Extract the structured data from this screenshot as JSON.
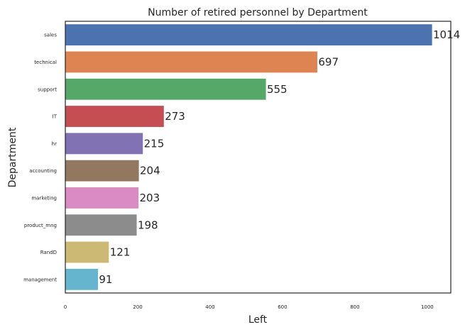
{
  "chart_data": {
    "type": "bar",
    "orientation": "horizontal",
    "title": "Number of retired personnel by Department",
    "xlabel": "Left",
    "ylabel": "Department",
    "categories": [
      "sales",
      "technical",
      "support",
      "IT",
      "hr",
      "accounting",
      "marketing",
      "product_mng",
      "RandD",
      "management"
    ],
    "values": [
      1014,
      697,
      555,
      273,
      215,
      204,
      203,
      198,
      121,
      91
    ],
    "data_labels": [
      "1014",
      "697",
      "555",
      "273",
      "215",
      "204",
      "203",
      "198",
      "121",
      "91"
    ],
    "xlim": [
      0,
      1065
    ],
    "xticks": [
      0,
      200,
      400,
      600,
      800,
      1000
    ],
    "xtick_labels": [
      "0",
      "200",
      "400",
      "600",
      "800",
      "1000"
    ],
    "grid": false,
    "colors": [
      "#4c72b0",
      "#dd8452",
      "#55a868",
      "#c44e52",
      "#8172b3",
      "#937860",
      "#da8bc3",
      "#8c8c8c",
      "#ccb974",
      "#64b5cd"
    ]
  }
}
